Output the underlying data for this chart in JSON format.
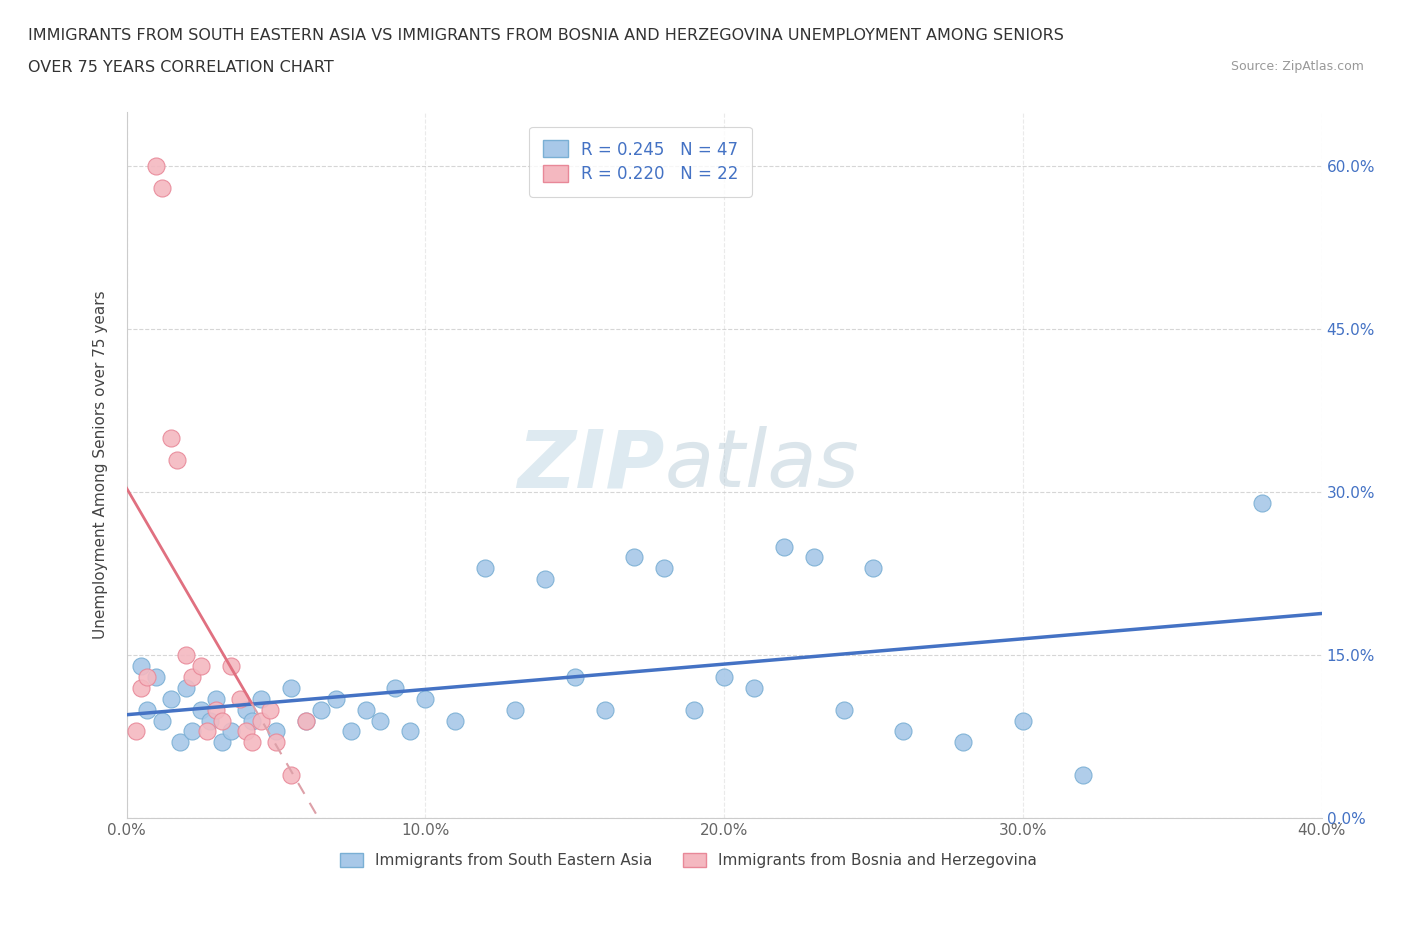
{
  "title_line1": "IMMIGRANTS FROM SOUTH EASTERN ASIA VS IMMIGRANTS FROM BOSNIA AND HERZEGOVINA UNEMPLOYMENT AMONG SENIORS",
  "title_line2": "OVER 75 YEARS CORRELATION CHART",
  "source_text": "Source: ZipAtlas.com",
  "ylabel": "Unemployment Among Seniors over 75 years",
  "xlim": [
    0.0,
    0.4
  ],
  "ylim": [
    0.0,
    0.65
  ],
  "xticks": [
    0.0,
    0.1,
    0.2,
    0.3,
    0.4
  ],
  "xtick_labels": [
    "0.0%",
    "10.0%",
    "20.0%",
    "30.0%",
    "40.0%"
  ],
  "yticks": [
    0.0,
    0.15,
    0.3,
    0.45,
    0.6
  ],
  "ytick_labels": [
    "0.0%",
    "15.0%",
    "30.0%",
    "45.0%",
    "60.0%"
  ],
  "blue_scatter_color": "#a8c8e8",
  "blue_edge_color": "#7aafd4",
  "pink_scatter_color": "#f4b8c0",
  "pink_edge_color": "#e88898",
  "trend_blue_color": "#4472c4",
  "trend_pink_color": "#e07080",
  "trend_pink_dash_color": "#dda0a8",
  "watermark_color": "#dce8f0",
  "legend_R1": "R = 0.245",
  "legend_N1": "N = 47",
  "legend_R2": "R = 0.220",
  "legend_N2": "N = 22",
  "blue_scatter_x": [
    0.005,
    0.007,
    0.01,
    0.012,
    0.015,
    0.018,
    0.02,
    0.022,
    0.025,
    0.028,
    0.03,
    0.032,
    0.035,
    0.04,
    0.042,
    0.045,
    0.05,
    0.055,
    0.06,
    0.065,
    0.07,
    0.075,
    0.08,
    0.085,
    0.09,
    0.095,
    0.1,
    0.11,
    0.12,
    0.13,
    0.14,
    0.15,
    0.16,
    0.17,
    0.18,
    0.19,
    0.2,
    0.21,
    0.22,
    0.23,
    0.24,
    0.25,
    0.26,
    0.28,
    0.3,
    0.32,
    0.38
  ],
  "blue_scatter_y": [
    0.14,
    0.1,
    0.13,
    0.09,
    0.11,
    0.07,
    0.12,
    0.08,
    0.1,
    0.09,
    0.11,
    0.07,
    0.08,
    0.1,
    0.09,
    0.11,
    0.08,
    0.12,
    0.09,
    0.1,
    0.11,
    0.08,
    0.1,
    0.09,
    0.12,
    0.08,
    0.11,
    0.09,
    0.23,
    0.1,
    0.22,
    0.13,
    0.1,
    0.24,
    0.23,
    0.1,
    0.13,
    0.12,
    0.25,
    0.24,
    0.1,
    0.23,
    0.08,
    0.07,
    0.09,
    0.04,
    0.29
  ],
  "pink_scatter_x": [
    0.003,
    0.005,
    0.007,
    0.01,
    0.012,
    0.015,
    0.017,
    0.02,
    0.022,
    0.025,
    0.027,
    0.03,
    0.032,
    0.035,
    0.038,
    0.04,
    0.042,
    0.045,
    0.048,
    0.05,
    0.055,
    0.06
  ],
  "pink_scatter_y": [
    0.08,
    0.12,
    0.13,
    0.6,
    0.58,
    0.35,
    0.33,
    0.15,
    0.13,
    0.14,
    0.08,
    0.1,
    0.09,
    0.14,
    0.11,
    0.08,
    0.07,
    0.09,
    0.1,
    0.07,
    0.04,
    0.09
  ],
  "legend1_label": "Immigrants from South Eastern Asia",
  "legend2_label": "Immigrants from Bosnia and Herzegovina"
}
